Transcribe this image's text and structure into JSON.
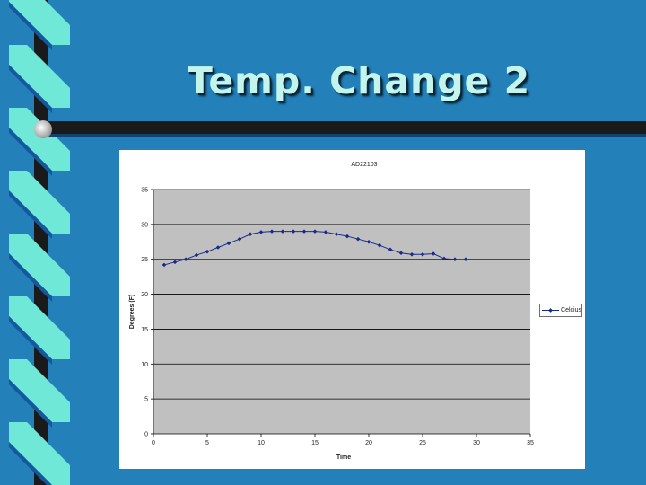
{
  "slide": {
    "title": "Temp. Change 2",
    "background_color": "#2380b8",
    "decoration_colors": {
      "stripe_light": "#6fe8d8",
      "stripe_dark": "#1458a0",
      "bar": "#1a1a1a",
      "knob": "#e8e8e8"
    }
  },
  "chart_data": {
    "type": "line",
    "title": "AD22103",
    "xlabel": "Time",
    "ylabel": "Degrees (F)",
    "xlim": [
      0,
      35
    ],
    "ylim": [
      0,
      35
    ],
    "xticks": [
      "0",
      "5",
      "10",
      "15",
      "20",
      "25",
      "30",
      "35"
    ],
    "yticks": [
      "0",
      "5",
      "10",
      "15",
      "20",
      "25",
      "30",
      "35"
    ],
    "grid": {
      "horizontal": true,
      "vertical": false
    },
    "plot_background": "#c0c0c0",
    "legend_position": "right",
    "series": [
      {
        "name": "Celcius",
        "color": "#1a2a8c",
        "x": [
          1,
          2,
          3,
          4,
          5,
          6,
          7,
          8,
          9,
          10,
          11,
          12,
          13,
          14,
          15,
          16,
          17,
          18,
          19,
          20,
          21,
          22,
          23,
          24,
          25,
          26,
          27,
          28,
          29
        ],
        "y": [
          24.2,
          24.6,
          25.0,
          25.6,
          26.1,
          26.7,
          27.3,
          27.9,
          28.6,
          28.9,
          29.0,
          29.0,
          29.0,
          29.0,
          29.0,
          28.9,
          28.6,
          28.3,
          27.9,
          27.5,
          27.0,
          26.4,
          25.9,
          25.7,
          25.7,
          25.8,
          25.1,
          25.0,
          25.0
        ]
      }
    ]
  }
}
